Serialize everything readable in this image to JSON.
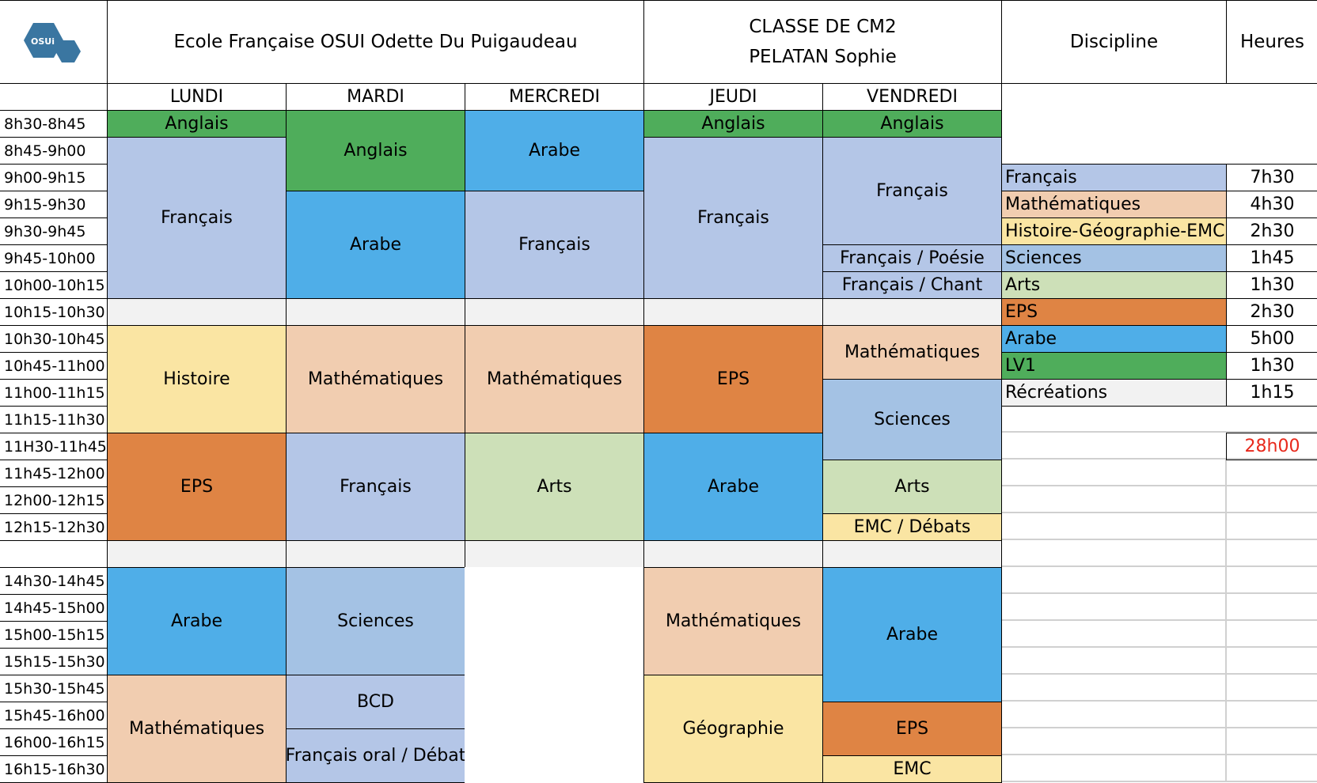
{
  "header": {
    "logo_text": "OSUi",
    "school": "Ecole Française OSUI Odette Du Puigaudeau",
    "class_line1": "CLASSE DE CM2",
    "class_line2": "PELATAN Sophie",
    "discipline": "Discipline",
    "hours": "Heures"
  },
  "colors": {
    "anglais": "#4fad5b",
    "arabe": "#4faee8",
    "francais": "#b4c6e7",
    "sciences": "#a4c2e4",
    "maths": "#f1cdb0",
    "histoire": "#fae5a3",
    "eps": "#df8444",
    "arts": "#cde0b8",
    "recre": "#f2f2f2",
    "none": "#ffffff"
  },
  "days": [
    "LUNDI",
    "MARDI",
    "MERCREDI",
    "JEUDI",
    "VENDREDI"
  ],
  "slots": [
    "8h30-8h45",
    "8h45-9h00",
    "9h00-9h15",
    "9h15-9h30",
    "9h30-9h45",
    "9h45-10h00",
    "10h00-10h15",
    "10h15-10h30",
    "10h30-10h45",
    "10h45-11h00",
    "11h00-11h15",
    "11h15-11h30",
    "11H30-11h45",
    "11h45-12h00",
    "12h00-12h15",
    "12h15-12h30",
    "",
    "14h30-14h45",
    "14h45-15h00",
    "15h00-15h15",
    "15h15-15h30",
    "15h30-15h45",
    "15h45-16h00",
    "16h00-16h15",
    "16h15-16h30"
  ],
  "schedule": [
    [
      {
        "label": "Anglais",
        "slots": 1,
        "color": "anglais"
      },
      {
        "label": "Français",
        "slots": 6,
        "color": "francais"
      },
      {
        "label": "",
        "slots": 1,
        "color": "recre"
      },
      {
        "label": "Histoire",
        "slots": 4,
        "color": "histoire"
      },
      {
        "label": "EPS",
        "slots": 4,
        "color": "eps"
      },
      {
        "label": "",
        "slots": 1,
        "color": "recre"
      },
      {
        "label": "Arabe",
        "slots": 4,
        "color": "arabe"
      },
      {
        "label": "Mathématiques",
        "slots": 4,
        "color": "maths"
      }
    ],
    [
      {
        "label": "Anglais",
        "slots": 3,
        "color": "anglais"
      },
      {
        "label": "Arabe",
        "slots": 4,
        "color": "arabe"
      },
      {
        "label": "",
        "slots": 1,
        "color": "recre"
      },
      {
        "label": "Mathématiques",
        "slots": 4,
        "color": "maths"
      },
      {
        "label": "Français",
        "slots": 4,
        "color": "francais"
      },
      {
        "label": "",
        "slots": 1,
        "color": "recre"
      },
      {
        "label": "Sciences",
        "slots": 4,
        "color": "sciences"
      },
      {
        "label": "BCD",
        "slots": 2,
        "color": "francais"
      },
      {
        "label": "Français oral / Débat",
        "slots": 2,
        "color": "francais"
      }
    ],
    [
      {
        "label": "Arabe",
        "slots": 3,
        "color": "arabe"
      },
      {
        "label": "Français",
        "slots": 4,
        "color": "francais"
      },
      {
        "label": "",
        "slots": 1,
        "color": "recre"
      },
      {
        "label": "Mathématiques",
        "slots": 4,
        "color": "maths"
      },
      {
        "label": "Arts",
        "slots": 4,
        "color": "arts"
      },
      {
        "label": "",
        "slots": 1,
        "color": "recre"
      },
      {
        "label": "",
        "slots": 8,
        "color": "none"
      }
    ],
    [
      {
        "label": "Anglais",
        "slots": 1,
        "color": "anglais"
      },
      {
        "label": "Français",
        "slots": 6,
        "color": "francais"
      },
      {
        "label": "",
        "slots": 1,
        "color": "recre"
      },
      {
        "label": "EPS",
        "slots": 4,
        "color": "eps"
      },
      {
        "label": "Arabe",
        "slots": 4,
        "color": "arabe"
      },
      {
        "label": "",
        "slots": 1,
        "color": "recre"
      },
      {
        "label": "Mathématiques",
        "slots": 4,
        "color": "maths"
      },
      {
        "label": "Géographie",
        "slots": 4,
        "color": "histoire"
      }
    ],
    [
      {
        "label": "Anglais",
        "slots": 1,
        "color": "anglais"
      },
      {
        "label": "Français",
        "slots": 4,
        "color": "francais"
      },
      {
        "label": "Français / Poésie",
        "slots": 1,
        "color": "francais"
      },
      {
        "label": "Français / Chant",
        "slots": 1,
        "color": "francais"
      },
      {
        "label": "",
        "slots": 1,
        "color": "recre"
      },
      {
        "label": "Mathématiques",
        "slots": 2,
        "color": "maths"
      },
      {
        "label": "Sciences",
        "slots": 3,
        "color": "sciences"
      },
      {
        "label": "Arts",
        "slots": 2,
        "color": "arts"
      },
      {
        "label": "EMC / Débats",
        "slots": 1,
        "color": "histoire"
      },
      {
        "label": "",
        "slots": 1,
        "color": "recre"
      },
      {
        "label": "Arabe",
        "slots": 5,
        "color": "arabe"
      },
      {
        "label": "EPS",
        "slots": 2,
        "color": "eps"
      },
      {
        "label": "EMC",
        "slots": 1,
        "color": "histoire"
      }
    ]
  ],
  "summary": [
    {
      "label": "Français",
      "hours": "7h30",
      "color": "francais"
    },
    {
      "label": "Mathématiques",
      "hours": "4h30",
      "color": "maths"
    },
    {
      "label": "Histoire-Géographie-EMC",
      "hours": "2h30",
      "color": "histoire"
    },
    {
      "label": "Sciences",
      "hours": "1h45",
      "color": "sciences"
    },
    {
      "label": "Arts",
      "hours": "1h30",
      "color": "arts"
    },
    {
      "label": "EPS",
      "hours": "2h30",
      "color": "eps"
    },
    {
      "label": "Arabe",
      "hours": "5h00",
      "color": "arabe"
    },
    {
      "label": "LV1",
      "hours": "1h30",
      "color": "anglais"
    },
    {
      "label": "Récréations",
      "hours": "1h15",
      "color": "recre"
    }
  ],
  "total": {
    "value": "28h00",
    "color": "#e8291c"
  }
}
